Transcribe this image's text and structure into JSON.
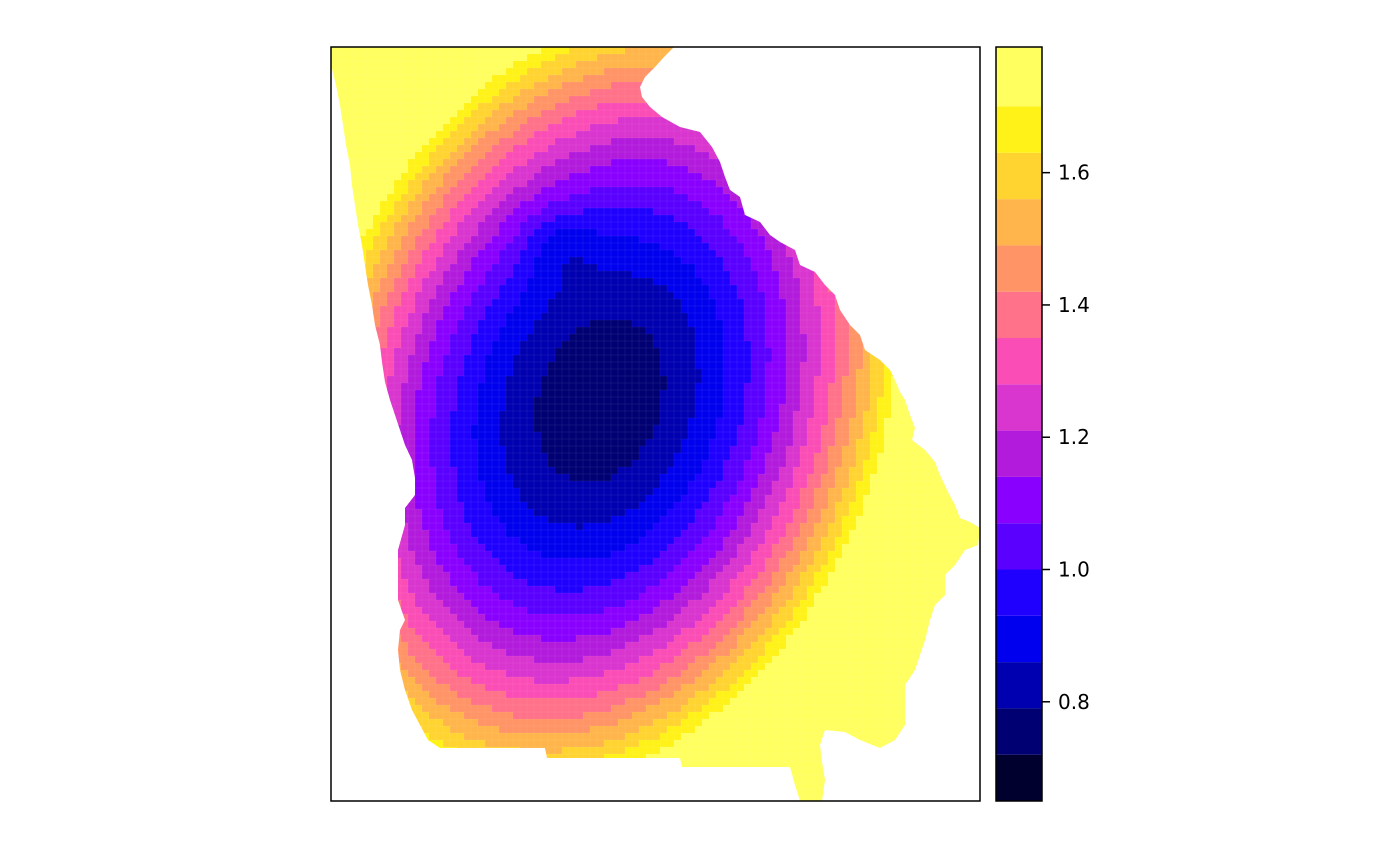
{
  "chart_data": {
    "type": "heatmap",
    "title": "",
    "xlabel": "",
    "ylabel": "",
    "value_range": [
      0.65,
      1.79
    ],
    "colorbar": {
      "position": "right",
      "ticks": [
        {
          "value": 0.8,
          "label": "0.8"
        },
        {
          "value": 1.0,
          "label": "1.0"
        },
        {
          "value": 1.2,
          "label": "1.2"
        },
        {
          "value": 1.4,
          "label": "1.4"
        },
        {
          "value": 1.6,
          "label": "1.6"
        }
      ],
      "bins": [
        {
          "from": 0.65,
          "to": 0.72,
          "color": "#00002e"
        },
        {
          "from": 0.72,
          "to": 0.79,
          "color": "#000073"
        },
        {
          "from": 0.79,
          "to": 0.86,
          "color": "#0000b0"
        },
        {
          "from": 0.86,
          "to": 0.93,
          "color": "#0000ee"
        },
        {
          "from": 0.93,
          "to": 1.0,
          "color": "#1f00ff"
        },
        {
          "from": 1.0,
          "to": 1.07,
          "color": "#5a00ff"
        },
        {
          "from": 1.07,
          "to": 1.14,
          "color": "#8a00ff"
        },
        {
          "from": 1.14,
          "to": 1.21,
          "color": "#b21bdc"
        },
        {
          "from": 1.21,
          "to": 1.28,
          "color": "#d935cf"
        },
        {
          "from": 1.28,
          "to": 1.35,
          "color": "#fa4db5"
        },
        {
          "from": 1.35,
          "to": 1.42,
          "color": "#ff7289"
        },
        {
          "from": 1.42,
          "to": 1.49,
          "color": "#ff9466"
        },
        {
          "from": 1.49,
          "to": 1.56,
          "color": "#ffb54b"
        },
        {
          "from": 1.56,
          "to": 1.63,
          "color": "#ffd431"
        },
        {
          "from": 1.63,
          "to": 1.7,
          "color": "#fff218"
        },
        {
          "from": 1.7,
          "to": 1.79,
          "color": "#ffff60"
        }
      ]
    },
    "field": {
      "description_min": {
        "value": 0.66
      },
      "region_max_values": [
        1.45,
        1.75,
        1.78
      ]
    }
  }
}
